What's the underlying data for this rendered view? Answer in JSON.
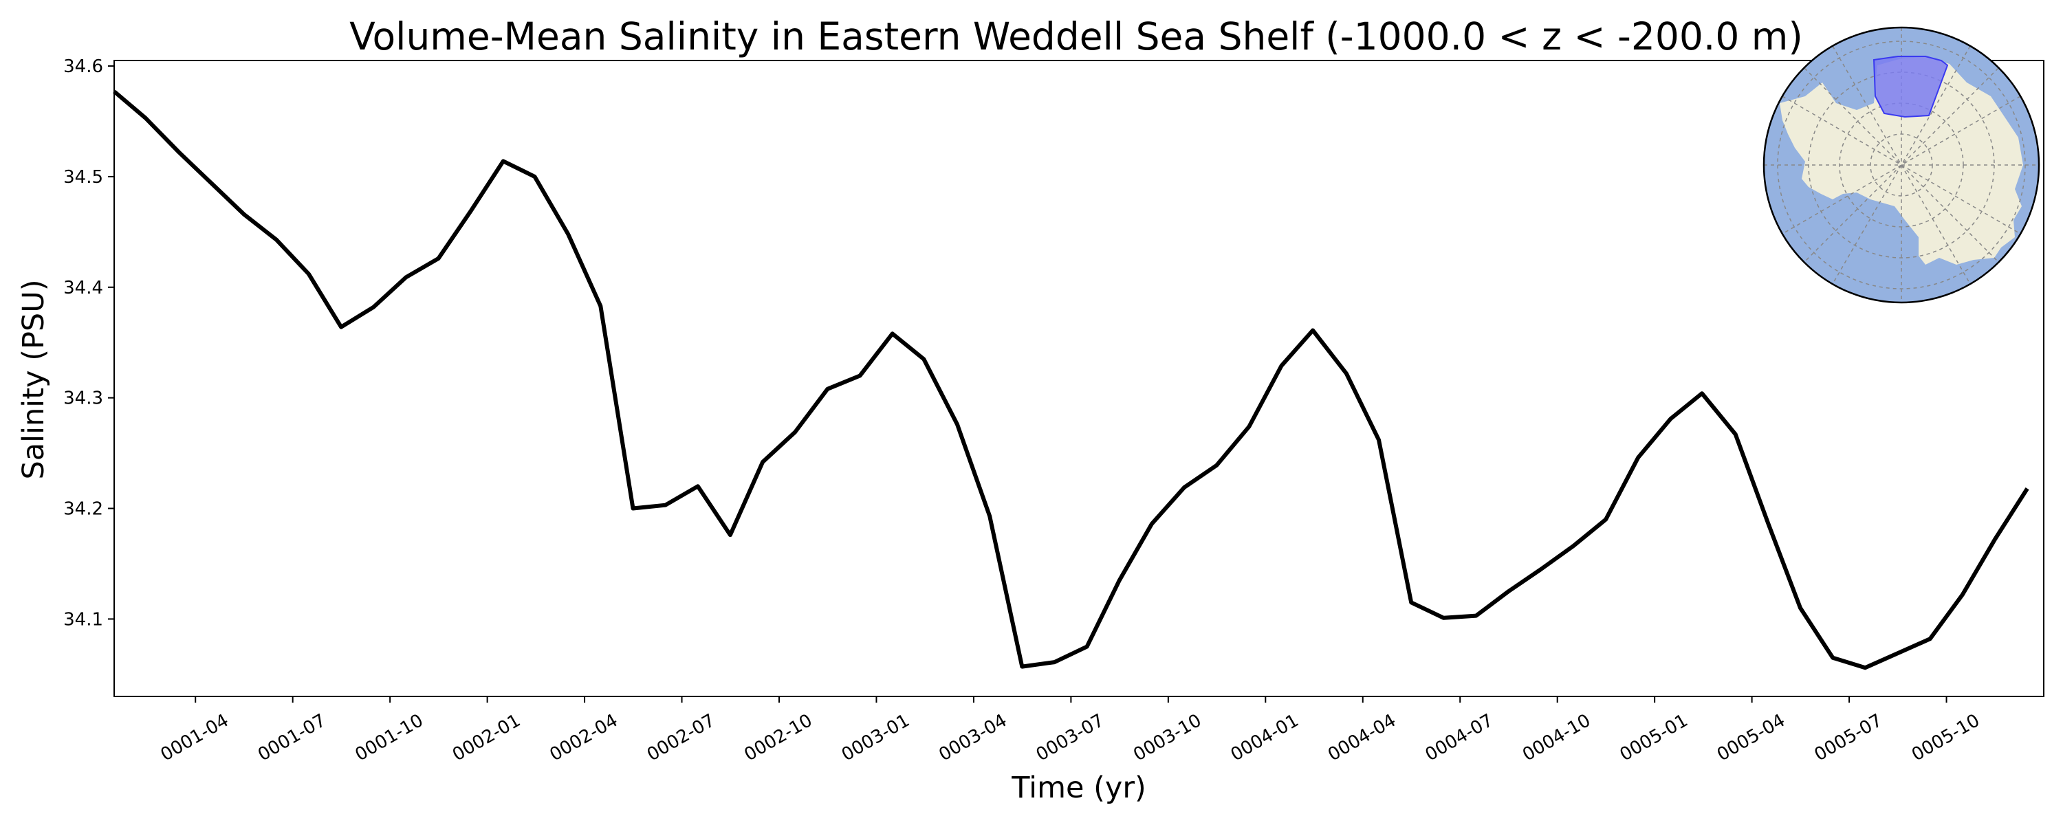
{
  "chart_data": {
    "type": "line",
    "title": "Volume-Mean Salinity in Eastern Weddell Sea Shelf (-1000.0 < z < -200.0 m)",
    "xlabel": "Time (yr)",
    "ylabel": "Salinity (PSU)",
    "xlim": [
      "0001-01-16",
      "0006-01-01"
    ],
    "ylim": [
      34.03,
      34.605
    ],
    "yticks": [
      34.1,
      34.2,
      34.3,
      34.4,
      34.5,
      34.6
    ],
    "yticklabels": [
      "34.1",
      "34.2",
      "34.3",
      "34.4",
      "34.5",
      "34.6"
    ],
    "xticks": [
      "0001-04-01",
      "0001-07-01",
      "0001-10-01",
      "0002-01-01",
      "0002-04-01",
      "0002-07-01",
      "0002-10-01",
      "0003-01-01",
      "0003-04-01",
      "0003-07-01",
      "0003-10-01",
      "0004-01-01",
      "0004-04-01",
      "0004-07-01",
      "0004-10-01",
      "0005-01-01",
      "0005-04-01",
      "0005-07-01",
      "0005-10-01"
    ],
    "xticklabels": [
      "0001-04",
      "0001-07",
      "0001-10",
      "0002-01",
      "0002-04",
      "0002-07",
      "0002-10",
      "0003-01",
      "0003-04",
      "0003-07",
      "0003-10",
      "0004-01",
      "0004-04",
      "0004-07",
      "0004-10",
      "0005-01",
      "0005-04",
      "0005-07",
      "0005-10"
    ],
    "grid": false,
    "legend": "none",
    "line_color": "#000000",
    "series": [
      {
        "x": [
          "0001-01-16",
          "0001-02-15",
          "0001-03-16",
          "0001-04-16",
          "0001-05-16",
          "0001-06-16",
          "0001-07-16",
          "0001-08-16",
          "0001-09-16",
          "0001-10-16",
          "0001-11-16",
          "0001-12-16",
          "0002-01-16",
          "0002-02-15",
          "0002-03-16",
          "0002-04-16",
          "0002-05-16",
          "0002-06-16",
          "0002-07-16",
          "0002-08-16",
          "0002-09-16",
          "0002-10-16",
          "0002-11-16",
          "0002-12-16",
          "0003-01-16",
          "0003-02-15",
          "0003-03-16",
          "0003-04-16",
          "0003-05-16",
          "0003-06-16",
          "0003-07-16",
          "0003-08-16",
          "0003-09-16",
          "0003-10-16",
          "0003-11-16",
          "0003-12-16",
          "0004-01-16",
          "0004-02-15",
          "0004-03-16",
          "0004-04-16",
          "0004-05-16",
          "0004-06-16",
          "0004-07-16",
          "0004-08-16",
          "0004-09-16",
          "0004-10-16",
          "0004-11-16",
          "0004-12-16",
          "0005-01-16",
          "0005-02-15",
          "0005-03-16",
          "0005-04-16",
          "0005-05-16",
          "0005-06-16",
          "0005-07-16",
          "0005-08-16",
          "0005-09-16",
          "0005-10-16",
          "0005-11-16",
          "0005-12-16"
        ],
        "values": [
          34.577,
          34.553,
          34.522,
          34.494,
          34.466,
          34.443,
          34.412,
          34.364,
          34.382,
          34.409,
          34.426,
          34.469,
          34.514,
          34.5,
          34.448,
          34.383,
          34.2,
          34.203,
          34.22,
          34.176,
          34.242,
          34.269,
          34.308,
          34.32,
          34.358,
          34.335,
          34.276,
          34.193,
          34.057,
          34.061,
          34.075,
          34.135,
          34.186,
          34.219,
          34.239,
          34.274,
          34.329,
          34.361,
          34.322,
          34.262,
          34.115,
          34.101,
          34.103,
          34.125,
          34.145,
          34.166,
          34.19,
          34.246,
          34.281,
          34.304,
          34.267,
          34.187,
          34.11,
          34.065,
          34.056,
          34.069,
          34.082,
          34.122,
          34.172,
          34.218
        ]
      }
    ]
  },
  "inset_map": {
    "ocean_color": "#95b2e0",
    "land_color": "#efedda",
    "region_color": "#7b7cf0",
    "region_edge_color": "#3a3af0"
  }
}
